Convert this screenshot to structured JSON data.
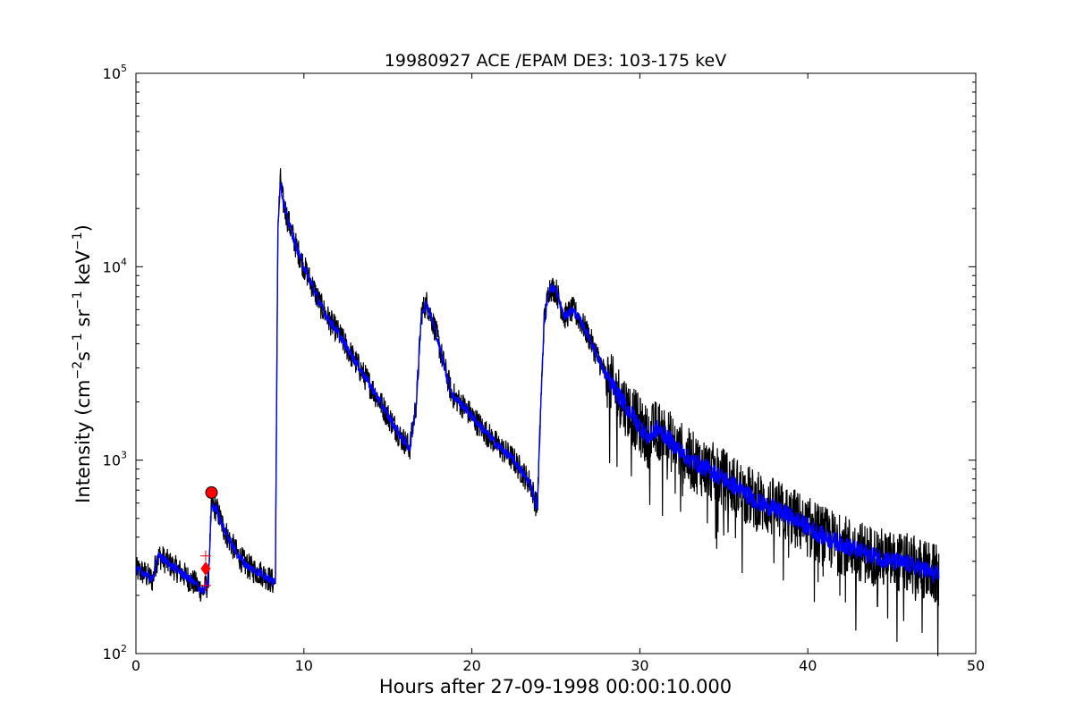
{
  "chart_data": {
    "type": "line",
    "title": "19980927 ACE /EPAM DE3: 103-175 keV",
    "xlabel": "Hours after 27-09-1998 00:00:10.000",
    "ylabel": "Intensity (cm⁻²s⁻¹sr⁻¹keV⁻¹)",
    "ylabel_parts": [
      "Intensity (cm",
      "−2",
      "s",
      "−1",
      " sr",
      "−1",
      " keV",
      "−1",
      ")"
    ],
    "xlim": [
      0,
      50
    ],
    "ylim": [
      100,
      100000
    ],
    "yscale": "log",
    "grid": false,
    "x_ticks": [
      {
        "label": "0",
        "value": 0
      },
      {
        "label": "10",
        "value": 10
      },
      {
        "label": "20",
        "value": 20
      },
      {
        "label": "30",
        "value": 30
      },
      {
        "label": "40",
        "value": 40
      },
      {
        "label": "50",
        "value": 50
      }
    ],
    "y_ticks": [
      {
        "base": "10",
        "exp": "2",
        "value": 100
      },
      {
        "base": "10",
        "exp": "3",
        "value": 1000
      },
      {
        "base": "10",
        "exp": "4",
        "value": 10000
      },
      {
        "base": "10",
        "exp": "5",
        "value": 100000
      }
    ],
    "colors": {
      "raw": "#000000",
      "smoothed": "#0000ff",
      "marker": "#ff0000"
    },
    "series": [
      {
        "role": "raw",
        "noise": "high",
        "x": [
          0,
          0.5,
          1.0,
          1.2,
          1.4,
          2.0,
          2.5,
          3.0,
          3.5,
          4.0,
          4.3,
          4.5,
          4.8,
          5.2,
          5.6,
          6.0,
          6.5,
          7.0,
          7.5,
          8.0,
          8.3,
          8.45,
          8.6,
          8.75,
          9.0,
          9.5,
          10.0,
          10.5,
          11.0,
          11.5,
          12.0,
          13.0,
          14.0,
          15.0,
          15.5,
          15.8,
          16.0,
          16.3,
          16.7,
          17.0,
          17.3,
          17.8,
          18.3,
          18.8,
          19.5,
          20.5,
          21.5,
          22.5,
          23.5,
          23.9,
          24.1,
          24.3,
          24.6,
          25.0,
          25.5,
          26.0,
          26.5,
          27.0,
          27.5,
          28.0,
          29.0,
          30.0,
          30.5,
          31.0,
          31.5,
          32.0,
          33.0,
          34.0,
          35.0,
          36.0,
          37.0,
          38.0,
          39.0,
          40.0,
          41.0,
          42.0,
          43.0,
          44.0,
          45.0,
          46.0,
          47.0,
          47.8
        ],
        "y": [
          270,
          260,
          240,
          300,
          320,
          290,
          270,
          250,
          230,
          210,
          230,
          580,
          560,
          450,
          380,
          330,
          290,
          270,
          260,
          240,
          230,
          16000,
          28000,
          22000,
          18000,
          13000,
          10000,
          8000,
          6300,
          5300,
          4600,
          3300,
          2400,
          1700,
          1450,
          1300,
          1250,
          1150,
          2000,
          5800,
          6500,
          4800,
          3200,
          2200,
          1900,
          1500,
          1200,
          1000,
          750,
          560,
          1900,
          5200,
          7800,
          7600,
          5500,
          6000,
          5200,
          4300,
          3400,
          2700,
          2000,
          1500,
          1300,
          1450,
          1350,
          1200,
          1000,
          900,
          800,
          700,
          610,
          560,
          510,
          450,
          400,
          370,
          340,
          320,
          300,
          290,
          270,
          250
        ]
      },
      {
        "role": "smoothed",
        "noise": "low",
        "x": [
          0,
          0.5,
          1.0,
          1.2,
          1.4,
          2.0,
          2.5,
          3.0,
          3.5,
          4.0,
          4.3,
          4.5,
          4.8,
          5.2,
          5.6,
          6.0,
          6.5,
          7.0,
          7.5,
          8.0,
          8.3,
          8.45,
          8.6,
          8.75,
          9.0,
          9.5,
          10.0,
          10.5,
          11.0,
          11.5,
          12.0,
          13.0,
          14.0,
          15.0,
          15.5,
          15.8,
          16.0,
          16.3,
          16.7,
          17.0,
          17.3,
          17.8,
          18.3,
          18.8,
          19.5,
          20.5,
          21.5,
          22.5,
          23.5,
          23.9,
          24.1,
          24.3,
          24.6,
          25.0,
          25.5,
          26.0,
          26.5,
          27.0,
          27.5,
          28.0,
          29.0,
          30.0,
          30.5,
          31.0,
          31.5,
          32.0,
          33.0,
          34.0,
          35.0,
          36.0,
          37.0,
          38.0,
          39.0,
          40.0,
          41.0,
          42.0,
          43.0,
          44.0,
          45.0,
          46.0,
          47.0,
          47.8
        ],
        "y": [
          270,
          260,
          240,
          300,
          320,
          290,
          270,
          250,
          230,
          210,
          230,
          580,
          560,
          450,
          380,
          330,
          290,
          270,
          260,
          240,
          230,
          16000,
          28000,
          22000,
          18000,
          13000,
          10000,
          8000,
          6300,
          5300,
          4600,
          3300,
          2400,
          1700,
          1450,
          1300,
          1250,
          1150,
          2000,
          5800,
          6500,
          4800,
          3200,
          2200,
          1900,
          1500,
          1200,
          1000,
          750,
          560,
          1900,
          5200,
          7800,
          7600,
          5500,
          6000,
          5200,
          4300,
          3400,
          2700,
          2000,
          1500,
          1300,
          1450,
          1350,
          1200,
          1000,
          900,
          800,
          700,
          610,
          560,
          510,
          450,
          400,
          370,
          340,
          320,
          300,
          290,
          270,
          250
        ]
      }
    ],
    "markers": [
      {
        "shape": "circle",
        "x": 4.5,
        "y": 680
      },
      {
        "shape": "diamond",
        "x": 4.15,
        "y": 275
      },
      {
        "shape": "plus",
        "x": 4.15,
        "y": 320
      },
      {
        "shape": "plus",
        "x": 4.15,
        "y": 225
      }
    ]
  }
}
